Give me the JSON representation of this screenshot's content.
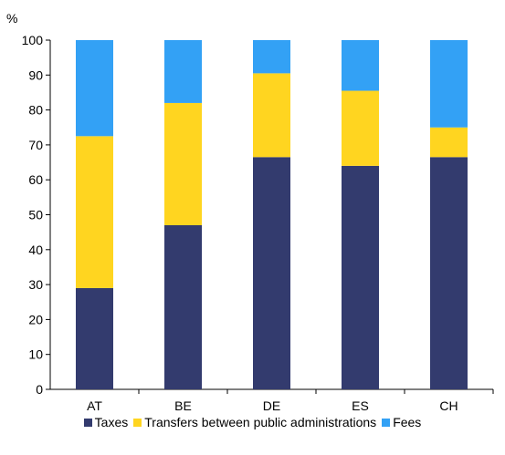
{
  "chart_data": {
    "type": "bar",
    "stacked": true,
    "ylabel": "%",
    "ylim": [
      0,
      100
    ],
    "yticks": [
      0,
      10,
      20,
      30,
      40,
      50,
      60,
      70,
      80,
      90,
      100
    ],
    "categories": [
      "AT",
      "BE",
      "DE",
      "ES",
      "CH"
    ],
    "series": [
      {
        "name": "Taxes",
        "color": "#333b6e",
        "values": [
          29,
          47,
          66.5,
          64,
          66.5
        ]
      },
      {
        "name": "Transfers between public administrations",
        "color": "#ffd520",
        "values": [
          43.5,
          35,
          24,
          21.5,
          8.5
        ]
      },
      {
        "name": "Fees",
        "color": "#33a1f5",
        "values": [
          27.5,
          18,
          9.5,
          14.5,
          25
        ]
      }
    ],
    "legend_position": "bottom",
    "grid": false
  }
}
